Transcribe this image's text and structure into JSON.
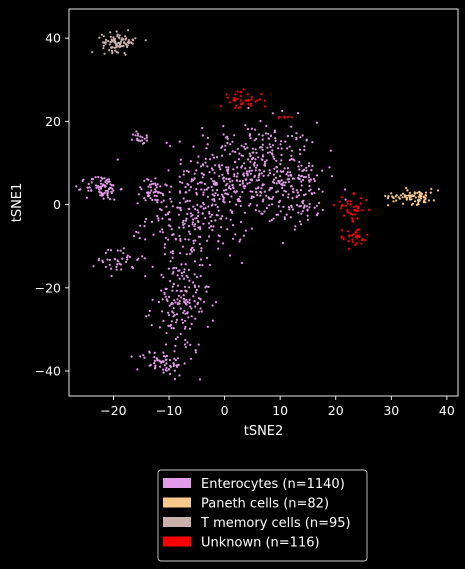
{
  "chart_data": {
    "type": "scatter",
    "title": "",
    "xlabel": "tSNE2",
    "ylabel": "tSNE1",
    "xlim": [
      -28,
      42
    ],
    "ylim": [
      -46,
      47
    ],
    "xticks": [
      -20,
      -10,
      0,
      10,
      20,
      30,
      40
    ],
    "yticks": [
      -40,
      -20,
      0,
      20,
      40
    ],
    "xtick_labels": [
      "−20",
      "−10",
      "0",
      "10",
      "20",
      "30",
      "40"
    ],
    "ytick_labels": [
      "−40",
      "−20",
      "0",
      "20",
      "40"
    ],
    "grid": false,
    "legend_position": "below plot",
    "background": "#000000",
    "series": [
      {
        "name": "Enterocytes (n=1140)",
        "color": "#e29be8",
        "count": 1140,
        "clusters": [
          {
            "center": [
              5,
              8
            ],
            "spread": [
              8,
              8
            ],
            "n": 420
          },
          {
            "center": [
              -5,
              -3
            ],
            "spread": [
              6,
              7
            ],
            "n": 230
          },
          {
            "center": [
              -8,
              -24
            ],
            "spread": [
              3.5,
              8
            ],
            "n": 170
          },
          {
            "center": [
              -11,
              -38
            ],
            "spread": [
              3,
              2
            ],
            "n": 60
          },
          {
            "center": [
              -19,
              -13
            ],
            "spread": [
              2.5,
              2.5
            ],
            "n": 40
          },
          {
            "center": [
              -22,
              4
            ],
            "spread": [
              2,
              2
            ],
            "n": 80
          },
          {
            "center": [
              -15,
              16
            ],
            "spread": [
              1,
              1
            ],
            "n": 20
          },
          {
            "center": [
              -13,
              3
            ],
            "spread": [
              2,
              2
            ],
            "n": 40
          },
          {
            "center": [
              14,
              2
            ],
            "spread": [
              3,
              5
            ],
            "n": 80
          }
        ]
      },
      {
        "name": "Paneth cells (n=82)",
        "color": "#f7c98a",
        "count": 82,
        "clusters": [
          {
            "center": [
              34,
              2
            ],
            "spread": [
              3,
              1.2
            ],
            "n": 82
          }
        ]
      },
      {
        "name": "T memory cells (n=95)",
        "color": "#c9b0ab",
        "count": 95,
        "clusters": [
          {
            "center": [
              -19,
              39
            ],
            "spread": [
              2,
              1.5
            ],
            "n": 95
          }
        ]
      },
      {
        "name": "Unknown (n=116)",
        "color": "#ff0000",
        "count": 116,
        "clusters": [
          {
            "center": [
              3,
              25
            ],
            "spread": [
              2.5,
              1.5
            ],
            "n": 40
          },
          {
            "center": [
              23,
              -1
            ],
            "spread": [
              2,
              2
            ],
            "n": 40
          },
          {
            "center": [
              23,
              -8
            ],
            "spread": [
              2,
              1.5
            ],
            "n": 30
          },
          {
            "center": [
              11,
              21
            ],
            "spread": [
              1,
              0.5
            ],
            "n": 6
          }
        ]
      }
    ]
  }
}
